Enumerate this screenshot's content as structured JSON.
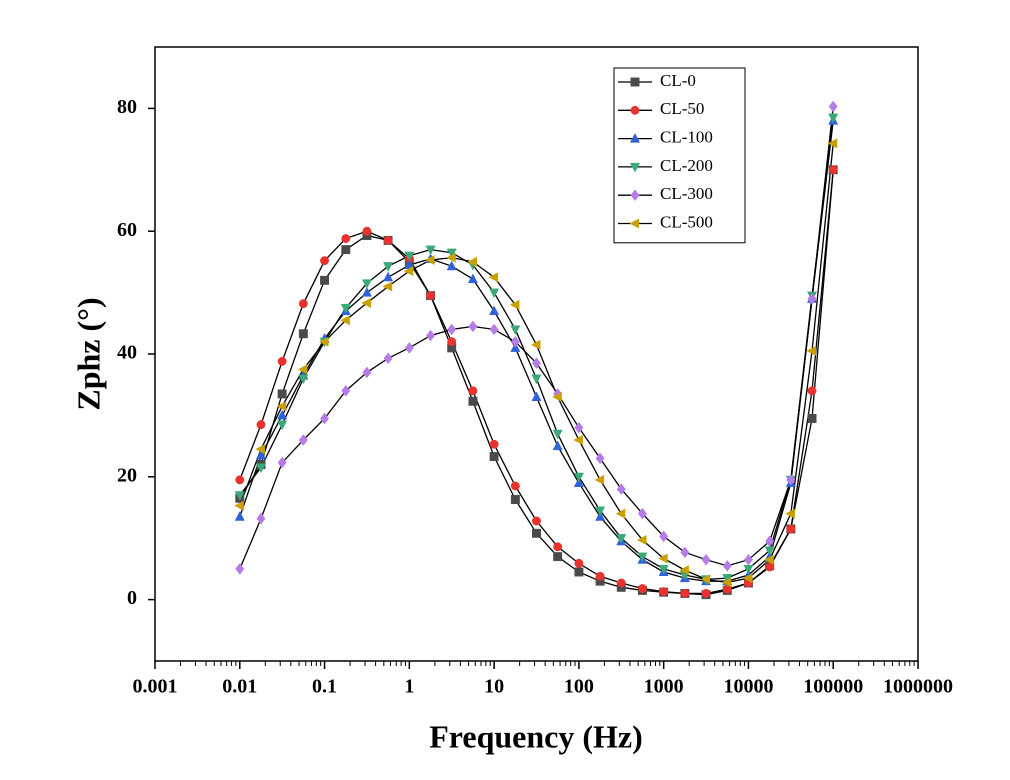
{
  "chart_data": {
    "type": "line",
    "xlabel": "Frequency (Hz)",
    "ylabel": "Zphz (°)",
    "x": [
      0.01,
      0.0178,
      0.0316,
      0.0562,
      0.1,
      0.178,
      0.316,
      0.562,
      1,
      1.78,
      3.16,
      5.62,
      10,
      17.8,
      31.6,
      56.2,
      100,
      178,
      316,
      562,
      1000,
      1778,
      3162,
      5623,
      10000,
      17783,
      31623,
      56234,
      100000
    ],
    "series": [
      {
        "name": "CL-0",
        "color": "#4a4a4a",
        "marker": "square",
        "values": [
          16.5,
          22,
          33.5,
          43.3,
          52,
          57,
          59.3,
          58.5,
          55,
          49.5,
          41,
          32.3,
          23.3,
          16.3,
          10.8,
          7,
          4.5,
          3,
          2,
          1.5,
          1.2,
          1,
          0.8,
          1.5,
          2.7,
          5.5,
          11.5,
          29.5,
          70
        ]
      },
      {
        "name": "CL-50",
        "color": "#e8322e",
        "marker": "circle",
        "values": [
          19.5,
          28.5,
          38.8,
          48.2,
          55.2,
          58.8,
          60,
          58.5,
          55.5,
          49.5,
          42,
          34,
          25.3,
          18.5,
          12.8,
          8.6,
          5.9,
          3.8,
          2.7,
          1.8,
          1.3,
          1,
          1,
          1.7,
          2.7,
          5.3,
          11.5,
          34,
          70
        ]
      },
      {
        "name": "CL-100",
        "color": "#2f62d8",
        "marker": "triangle-up",
        "values": [
          13.5,
          23.5,
          30,
          36.5,
          42.5,
          47,
          50,
          52.5,
          54.5,
          55.5,
          54.3,
          52.2,
          47,
          41,
          33,
          25,
          19,
          13.5,
          9.5,
          6.5,
          4.5,
          3.5,
          3,
          3,
          4,
          7,
          19,
          49,
          78
        ]
      },
      {
        "name": "CL-200",
        "color": "#3aa877",
        "marker": "triangle-down",
        "values": [
          17,
          21.5,
          28.5,
          36,
          42,
          47.5,
          51.5,
          54.3,
          56,
          57,
          56.5,
          54.5,
          50,
          44,
          36,
          27,
          20,
          14.5,
          10,
          7,
          5,
          4,
          3.3,
          3.5,
          5,
          8,
          19.5,
          49.5,
          78.5
        ]
      },
      {
        "name": "CL-300",
        "color": "#b57ce8",
        "marker": "diamond",
        "values": [
          5,
          13.2,
          22.3,
          26,
          29.5,
          34,
          37,
          39.3,
          41,
          43,
          44,
          44.5,
          44,
          42,
          38.5,
          33.5,
          28,
          23,
          18,
          14,
          10.3,
          7.7,
          6.5,
          5.5,
          6.5,
          9.5,
          19.5,
          49,
          80.3
        ]
      },
      {
        "name": "CL-500",
        "color": "#c9a000",
        "marker": "triangle-left",
        "values": [
          15.3,
          24.5,
          31.5,
          37.5,
          42,
          45.5,
          48.3,
          51,
          53.5,
          55.3,
          55.7,
          55,
          52.5,
          48,
          41.5,
          33,
          26,
          19.5,
          14,
          9.7,
          6.7,
          4.8,
          3.3,
          2.8,
          3.5,
          6.5,
          14,
          40.5,
          74.3
        ]
      }
    ],
    "xscale": "log",
    "xlim": [
      0.001,
      1000000
    ],
    "xticks": [
      0.001,
      0.01,
      0.1,
      1,
      10,
      100,
      1000,
      10000,
      100000,
      1000000
    ],
    "ylim": [
      -10,
      90
    ],
    "yticks": [
      0,
      20,
      40,
      60,
      80
    ],
    "grid": false,
    "legend": "upper right"
  }
}
